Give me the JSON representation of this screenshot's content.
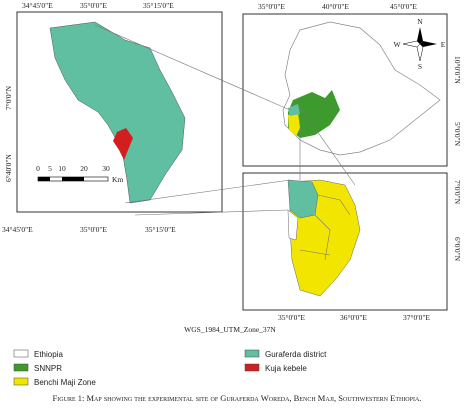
{
  "left_map": {
    "top_labels": [
      "34°45'0\"E",
      "35°0'0\"E",
      "35°15'0\"E"
    ],
    "bottom_labels": [
      "34°45'0\"E",
      "35°0'0\"E",
      "35°15'0\"E"
    ],
    "left_labels": [
      "7°0'0\"N",
      "6°40'0\"N"
    ],
    "scale_bar": {
      "ticks": [
        "0",
        "5",
        "10",
        "20",
        "30"
      ],
      "unit": "Km"
    }
  },
  "ethiopia_map": {
    "top_labels": [
      "35°0'0\"E",
      "40°0'0\"E",
      "45°0'0\"E"
    ],
    "right_labels": [
      "10°0'0\"N",
      "5°0'0\"N"
    ],
    "compass": {
      "north": "N",
      "west": "W",
      "east": "E",
      "south": "S"
    }
  },
  "zone_map": {
    "bottom_labels": [
      "35°0'0\"E",
      "36°0'0\"E",
      "37°0'0\"E"
    ],
    "right_labels": [
      "7°0'0\"N",
      "6°0'0\"N"
    ]
  },
  "projection": "WGS_1984_UTM_Zone_37N",
  "legend": [
    {
      "label": "Ethiopia",
      "color": "#ffffff"
    },
    {
      "label": "SNNPR",
      "color": "#3d9a2c"
    },
    {
      "label": "Benchi Maji Zone",
      "color": "#f2e600"
    },
    {
      "label": "Guraferda district",
      "color": "#5fbfa0"
    },
    {
      "label": "Kuja kebele",
      "color": "#d21e1e"
    }
  ],
  "caption": "Figure 1: Map showing the experimental site of Guraferda Woreda, Bench Maji, Southwestern Ethiopia."
}
